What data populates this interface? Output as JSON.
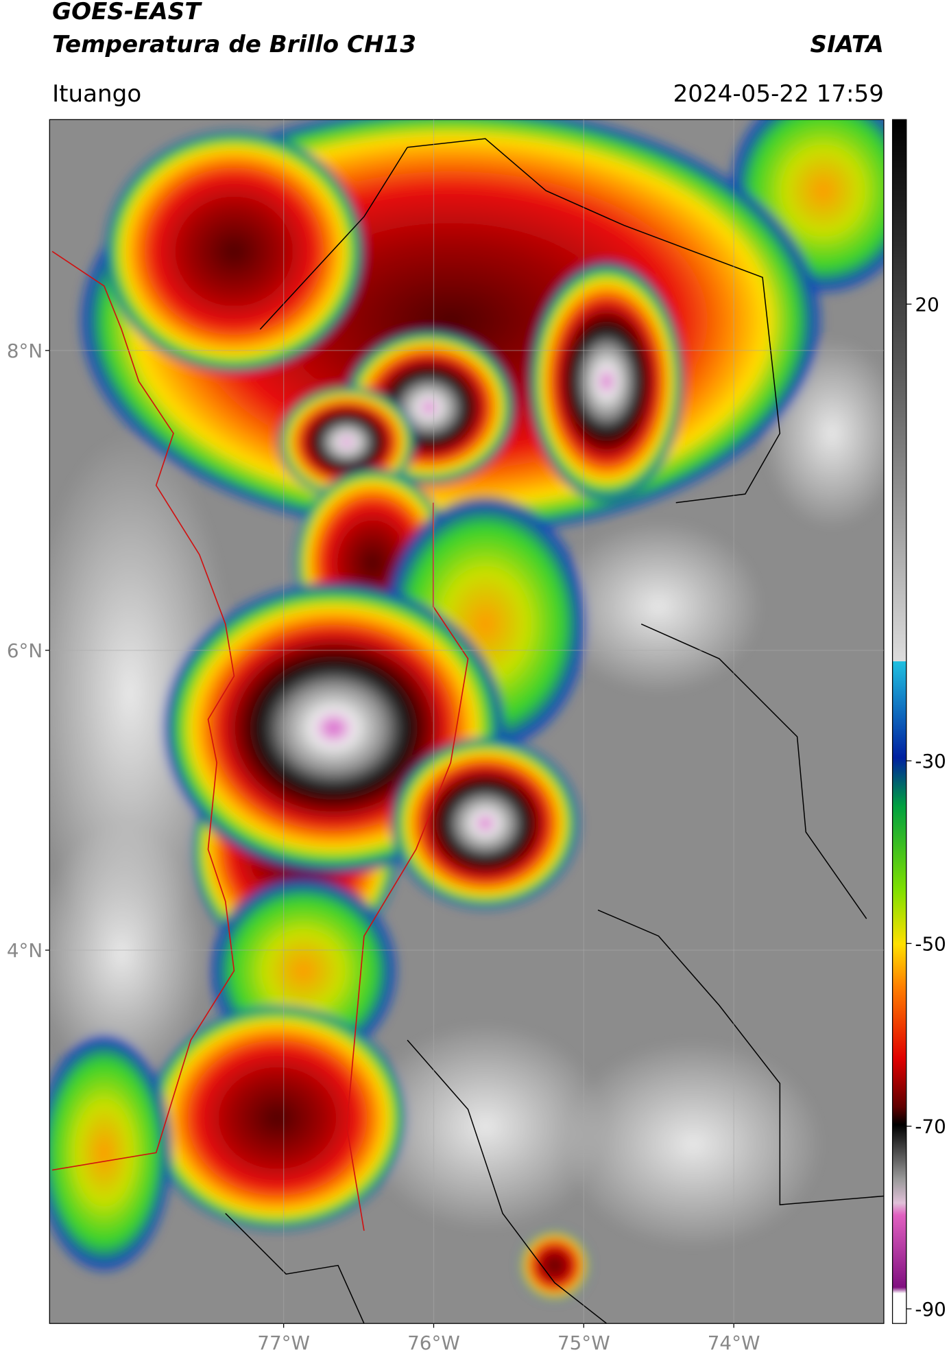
{
  "header": {
    "title": "GOES-EAST",
    "subtitle": "Temperatura de Brillo CH13",
    "agency": "SIATA",
    "location": "Ituango",
    "timestamp": "2024-05-22 17:59"
  },
  "map": {
    "lon_range": [
      -78.56,
      -73.0
    ],
    "lat_range": [
      1.51,
      9.54
    ],
    "lon_ticks": [
      {
        "value": -77,
        "label": "77°W"
      },
      {
        "value": -76,
        "label": "76°W"
      },
      {
        "value": -75,
        "label": "75°W"
      },
      {
        "value": -74,
        "label": "74°W"
      }
    ],
    "lat_ticks": [
      {
        "value": 8,
        "label": "8°N"
      },
      {
        "value": 6,
        "label": "6°N"
      },
      {
        "value": 4,
        "label": "4°N"
      }
    ]
  },
  "colorbar": {
    "range": [
      -91.6,
      40.2
    ],
    "ticks": [
      20,
      -30,
      -50,
      -70,
      -90
    ]
  }
}
